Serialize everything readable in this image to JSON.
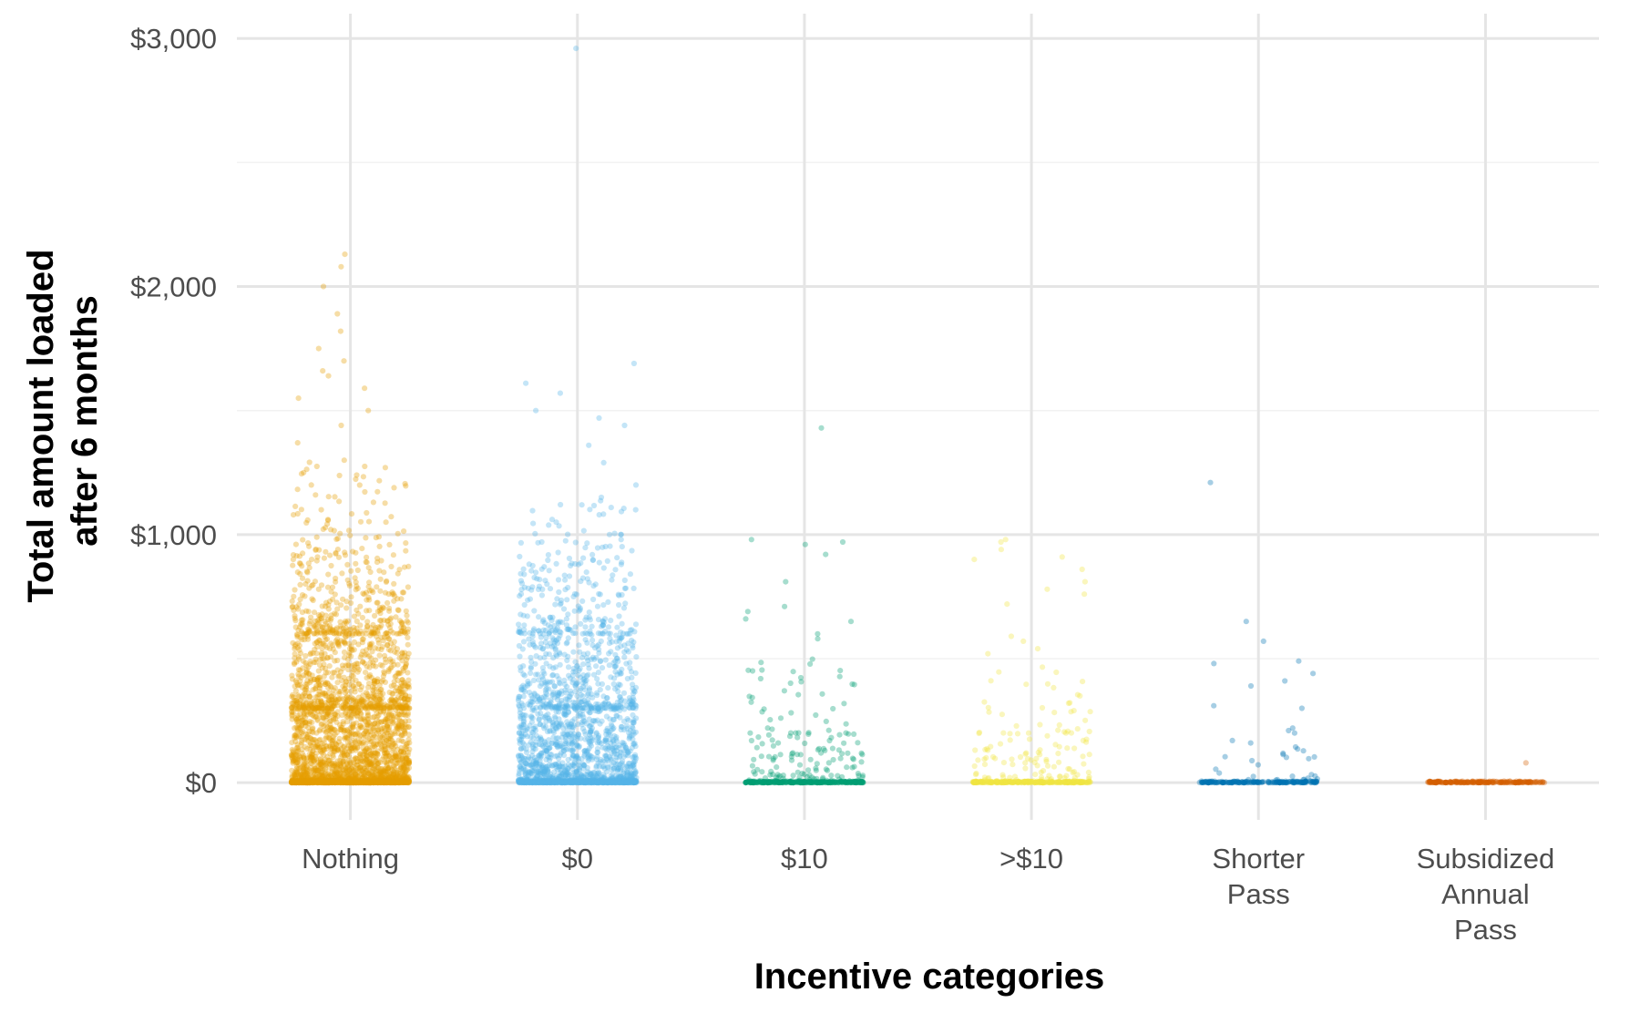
{
  "chart_data": {
    "type": "scatter",
    "subtype": "jitter strip plot",
    "xlabel": "Incentive categories",
    "ylabel_lines": [
      "Total amount loaded",
      "after 6 months"
    ],
    "ylim": [
      -150,
      3100
    ],
    "yticks": [
      {
        "value": 0,
        "label": "$0"
      },
      {
        "value": 1000,
        "label": "$1,000"
      },
      {
        "value": 2000,
        "label": "$2,000"
      },
      {
        "value": 3000,
        "label": "$3,000"
      }
    ],
    "grid": true,
    "legend": "none",
    "point_opacity": 0.35,
    "categories": [
      {
        "label_lines": [
          "Nothing"
        ],
        "color": "#E69F00"
      },
      {
        "label_lines": [
          "$0"
        ],
        "color": "#56B4E9"
      },
      {
        "label_lines": [
          "$10"
        ],
        "color": "#009E73"
      },
      {
        "label_lines": [
          ">$10"
        ],
        "color": "#F0E442"
      },
      {
        "label_lines": [
          "Shorter",
          "Pass"
        ],
        "color": "#0072B2"
      },
      {
        "label_lines": [
          "Subsidized",
          "Annual",
          "Pass"
        ],
        "color": "#D55E00"
      }
    ],
    "series": [
      {
        "category": 0,
        "notable_points": [
          2130,
          2080,
          2000,
          1890,
          1820,
          1750,
          1700,
          1660,
          1640,
          1590,
          1550,
          1500,
          1440,
          1370,
          1300,
          1270,
          1250,
          1240,
          1200,
          1160,
          1130,
          1100,
          1080,
          1050,
          1020
        ],
        "simulated_bands": [
          {
            "min": 0,
            "max": 10,
            "count": 900
          },
          {
            "min": 0,
            "max": 300,
            "count": 1500
          },
          {
            "min": 300,
            "max": 600,
            "count": 700
          },
          {
            "min": 600,
            "max": 1000,
            "count": 350
          },
          {
            "min": 1000,
            "max": 1300,
            "count": 40
          }
        ]
      },
      {
        "category": 1,
        "notable_points": [
          2960,
          1690,
          1610,
          1570,
          1500,
          1470,
          1440,
          1360,
          1290,
          1200,
          1150,
          1120,
          1100,
          1080,
          1050
        ],
        "simulated_bands": [
          {
            "min": 0,
            "max": 10,
            "count": 600
          },
          {
            "min": 0,
            "max": 300,
            "count": 1000
          },
          {
            "min": 300,
            "max": 600,
            "count": 450
          },
          {
            "min": 600,
            "max": 1000,
            "count": 220
          },
          {
            "min": 1000,
            "max": 1150,
            "count": 20
          }
        ]
      },
      {
        "category": 2,
        "notable_points": [
          1430,
          980,
          970,
          960,
          920,
          810,
          710,
          690,
          660,
          650,
          600,
          580
        ],
        "simulated_bands": [
          {
            "min": 0,
            "max": 6,
            "count": 350
          },
          {
            "min": 0,
            "max": 200,
            "count": 130
          },
          {
            "min": 200,
            "max": 500,
            "count": 40
          }
        ]
      },
      {
        "category": 3,
        "notable_points": [
          980,
          970,
          940,
          910,
          900,
          860,
          810,
          780,
          760,
          720,
          590,
          570,
          540,
          520
        ],
        "simulated_bands": [
          {
            "min": 0,
            "max": 6,
            "count": 300
          },
          {
            "min": 0,
            "max": 200,
            "count": 110
          },
          {
            "min": 200,
            "max": 500,
            "count": 35
          }
        ]
      },
      {
        "category": 4,
        "notable_points": [
          1210,
          650,
          570,
          490,
          480,
          440,
          410,
          390,
          310,
          300,
          220,
          210,
          200,
          170,
          160
        ],
        "simulated_bands": [
          {
            "min": 0,
            "max": 6,
            "count": 200
          },
          {
            "min": 0,
            "max": 150,
            "count": 35
          }
        ]
      },
      {
        "category": 5,
        "notable_points": [
          80
        ],
        "simulated_bands": [
          {
            "min": 0,
            "max": 6,
            "count": 220
          }
        ]
      }
    ]
  }
}
